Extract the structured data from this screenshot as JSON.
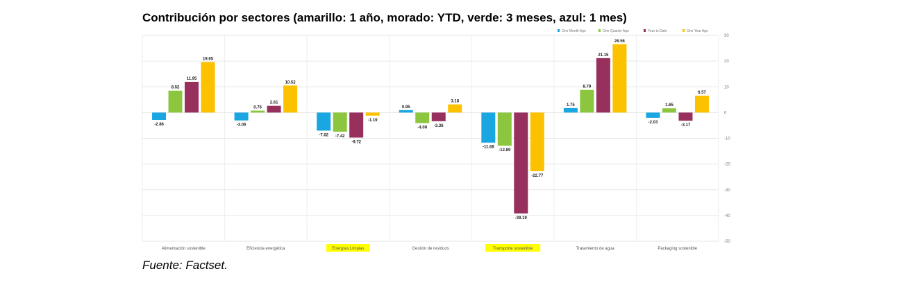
{
  "title": "Contribución por sectores (amarillo: 1 año, morado: YTD, verde: 3 meses, azul: 1 mes)",
  "source": "Fuente: Factset.",
  "chart_data": {
    "type": "bar",
    "categories": [
      "Alimentación sostenible",
      "Eficiencia energética",
      "Energías Limpias",
      "Gestión de residuos",
      "Transporte sostenible",
      "Tratamiento de agua",
      "Packaging sostenible"
    ],
    "highlighted_categories": [
      "Energías Limpias",
      "Transporte sostenible"
    ],
    "highlight_color": "#ffff00",
    "series": [
      {
        "name": "One Month Ago",
        "color": "#1aa7e1",
        "values": [
          -2.86,
          -3.06,
          -7.02,
          0.95,
          -11.68,
          1.75,
          -2.03
        ],
        "labels": [
          "-2.86",
          "-3.06",
          "-7.02",
          "0.95",
          "-11.68",
          "1.75",
          "-2.03"
        ]
      },
      {
        "name": "One Quarter Ago",
        "color": "#8cc63e",
        "values": [
          8.52,
          0.76,
          -7.42,
          -4.09,
          -12.89,
          8.79,
          1.65
        ],
        "labels": [
          "8.52",
          "0.76",
          "-7.42",
          "-4.09",
          "-12.89",
          "8.79",
          "1.65"
        ]
      },
      {
        "name": "Year to Date",
        "color": "#97305d",
        "values": [
          11.95,
          2.61,
          -9.72,
          -3.36,
          -39.19,
          21.15,
          -3.17
        ],
        "labels": [
          "11.95",
          "2.61",
          "-9.72",
          "-3.36",
          "-39.19",
          "21.15",
          "-3.17"
        ]
      },
      {
        "name": "One Year Ago",
        "color": "#fcc200",
        "values": [
          19.65,
          10.52,
          -1.19,
          3.18,
          -22.77,
          26.56,
          6.57
        ],
        "labels": [
          "19.65",
          "10.52",
          "-1.19",
          "3.18",
          "-22.77",
          "26.56",
          "6.57"
        ]
      }
    ],
    "yticks": [
      30,
      20,
      10,
      0,
      -10,
      -20,
      -30,
      -40,
      -50
    ],
    "ylim": [
      -50,
      30
    ],
    "grid": true,
    "legend": "top-right"
  }
}
